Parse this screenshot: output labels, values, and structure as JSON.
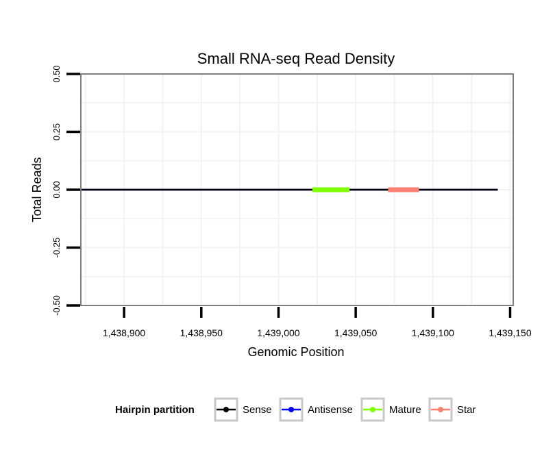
{
  "chart_data": {
    "type": "line",
    "title": "Small RNA-seq Read Density",
    "xlabel": "Genomic Position",
    "ylabel": "Total Reads",
    "xlim": [
      1438872,
      1439152
    ],
    "ylim": [
      -0.5,
      0.5
    ],
    "x_ticks": [
      1438900,
      1438950,
      1439000,
      1439050,
      1439100,
      1439150
    ],
    "x_tick_labels": [
      "1,438,900",
      "1,438,950",
      "1,439,000",
      "1,439,050",
      "1,439,100",
      "1,439,150"
    ],
    "y_ticks": [
      -0.5,
      -0.25,
      0.0,
      0.25,
      0.5
    ],
    "y_tick_labels": [
      "-0.50",
      "-0.25",
      "0.00",
      "0.25",
      "0.50"
    ],
    "grid": true,
    "series": [
      {
        "name": "Sense",
        "color": "#000000",
        "x": [
          1438872,
          1439142
        ],
        "y": [
          0,
          0
        ]
      },
      {
        "name": "Antisense",
        "color": "#0000ff",
        "x": [
          1438872,
          1439142
        ],
        "y": [
          0,
          0
        ]
      },
      {
        "name": "Mature",
        "color": "#7fff00",
        "x": [
          1439022,
          1439046
        ],
        "y": [
          0,
          0
        ]
      },
      {
        "name": "Star",
        "color": "#fa8072",
        "x": [
          1439071,
          1439091
        ],
        "y": [
          0,
          0
        ]
      }
    ],
    "legend": {
      "title": "Hairpin partition",
      "position": "bottom",
      "entries": [
        "Sense",
        "Antisense",
        "Mature",
        "Star"
      ]
    }
  }
}
